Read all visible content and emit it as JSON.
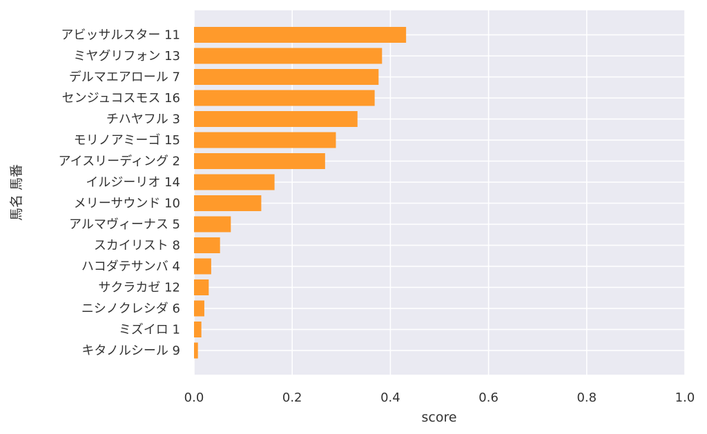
{
  "chart_data": {
    "type": "bar",
    "orientation": "horizontal",
    "xlabel": "score",
    "ylabel": "馬名 馬番",
    "xlim": [
      0,
      1.0
    ],
    "xticks": [
      "0.0",
      "0.2",
      "0.4",
      "0.6",
      "0.8",
      "1.0"
    ],
    "grid": true,
    "bar_color": "#ff9a2b",
    "plot_background": "#eaeaf2",
    "categories": [
      "アビッサルスター 11",
      "ミヤグリフォン 13",
      "デルマエアロール 7",
      "センジュコスモス 16",
      "チハヤフル 3",
      "モリノアミーゴ 15",
      "アイスリーディング 2",
      "イルジーリオ 14",
      "メリーサウンド 10",
      "アルマヴィーナス 5",
      "スカイリスト 8",
      "ハコダテサンバ 4",
      "サクラカゼ 12",
      "ニシノクレシダ 6",
      "ミズイロ 1",
      "キタノルシール 9"
    ],
    "values": [
      0.432,
      0.383,
      0.376,
      0.368,
      0.333,
      0.289,
      0.267,
      0.164,
      0.137,
      0.075,
      0.053,
      0.035,
      0.03,
      0.021,
      0.015,
      0.008
    ]
  }
}
